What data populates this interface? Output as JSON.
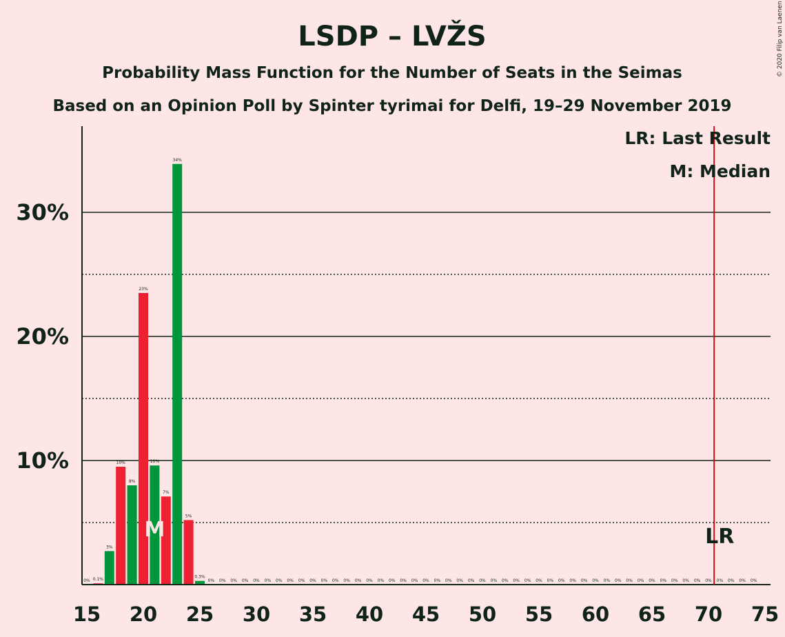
{
  "chart_data": {
    "type": "bar",
    "title": "LSDP – LVŽS",
    "subtitle": "Probability Mass Function for the Number of Seats in the Seimas",
    "subtitle2": "Based on an Opinion Poll by Spinter tyrimai for Delfi, 19–29 November 2019",
    "copyright": "© 2020 Filip van Laenen",
    "legend": {
      "lr": "LR: Last Result",
      "m": "M: Median",
      "position": "top-right"
    },
    "median_marker": "M",
    "last_result_marker": "LR",
    "median_seats": 21,
    "last_result_seats": 70.5,
    "xlim": [
      15,
      75
    ],
    "ylim": [
      0,
      37
    ],
    "x_ticks": [
      "15",
      "20",
      "25",
      "30",
      "35",
      "40",
      "45",
      "50",
      "55",
      "60",
      "65",
      "70",
      "75"
    ],
    "y_ticks": [
      {
        "value": 10,
        "label": "10%"
      },
      {
        "value": 20,
        "label": "20%"
      },
      {
        "value": 30,
        "label": "30%"
      }
    ],
    "y_minor_ticks": [
      5,
      15,
      25
    ],
    "grid": true,
    "colors": {
      "background": "#FFE6E6",
      "red": "#EE2132",
      "green": "#00963C",
      "text": "#0F2318",
      "lr_line": "#C91010"
    },
    "seats": [
      15,
      16,
      17,
      18,
      19,
      20,
      21,
      22,
      23,
      24,
      25,
      26,
      27,
      28,
      29,
      30,
      31,
      32,
      33,
      34,
      35,
      36,
      37,
      38,
      39,
      40,
      41,
      42,
      43,
      44,
      45,
      46,
      47,
      48,
      49,
      50,
      51,
      52,
      53,
      54,
      55,
      56,
      57,
      58,
      59,
      60,
      61,
      62,
      63,
      64,
      65,
      66,
      67,
      68,
      69,
      70,
      71,
      72,
      73,
      74
    ],
    "values": [
      0,
      0.1,
      2.7,
      9.5,
      8.0,
      23.5,
      9.6,
      7.1,
      33.9,
      5.2,
      0.3,
      0,
      0,
      0,
      0,
      0,
      0,
      0,
      0,
      0,
      0,
      0,
      0,
      0,
      0,
      0,
      0,
      0,
      0,
      0,
      0,
      0,
      0,
      0,
      0,
      0,
      0,
      0,
      0,
      0,
      0,
      0,
      0,
      0,
      0,
      0,
      0,
      0,
      0,
      0,
      0,
      0,
      0,
      0,
      0,
      0,
      0,
      0,
      0,
      0
    ],
    "labels": [
      "0%",
      "0.1%",
      "3%",
      "10%",
      "8%",
      "23%",
      "10%",
      "7%",
      "34%",
      "5%",
      "0.3%",
      "0%",
      "0%",
      "0%",
      "0%",
      "0%",
      "0%",
      "0%",
      "0%",
      "0%",
      "0%",
      "0%",
      "0%",
      "0%",
      "0%",
      "0%",
      "0%",
      "0%",
      "0%",
      "0%",
      "0%",
      "0%",
      "0%",
      "0%",
      "0%",
      "0%",
      "0%",
      "0%",
      "0%",
      "0%",
      "0%",
      "0%",
      "0%",
      "0%",
      "0%",
      "0%",
      "0%",
      "0%",
      "0%",
      "0%",
      "0%",
      "0%",
      "0%",
      "0%",
      "0%",
      "0%",
      "0%",
      "0%",
      "0%",
      "0%"
    ]
  }
}
